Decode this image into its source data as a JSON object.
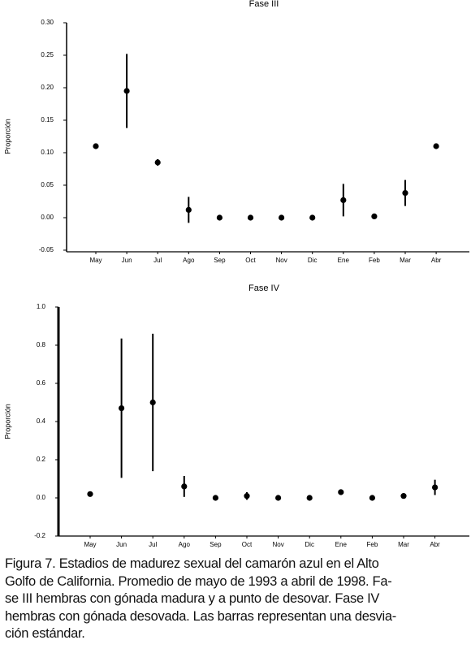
{
  "chart_data": [
    {
      "type": "errorbar",
      "title": "Fase III",
      "ylabel": "Proporción",
      "categories": [
        "May",
        "Jun",
        "Jul",
        "Ago",
        "Sep",
        "Oct",
        "Nov",
        "Dic",
        "Ene",
        "Feb",
        "Mar",
        "Abr"
      ],
      "values": [
        0.11,
        0.195,
        0.085,
        0.012,
        0,
        0,
        0,
        0,
        0.027,
        0.002,
        0.038,
        0.11
      ],
      "errors": [
        0.003,
        0.057,
        0.005,
        0.02,
        0.002,
        0.002,
        0.002,
        0.002,
        0.025,
        0.003,
        0.02,
        0.003
      ],
      "color": "#000000",
      "ylim": [
        -0.05,
        0.3
      ],
      "yticks": [
        -0.05,
        {
          "value": 0,
          "label": "0.00"
        },
        0.05,
        {
          "value": 0.1,
          "label": "0.10"
        },
        0.15,
        {
          "value": 0.2,
          "label": "0.20"
        },
        0.25,
        {
          "value": 0.3,
          "label": "0.30"
        }
      ]
    },
    {
      "type": "errorbar",
      "title": "Fase IV",
      "ylabel": "Proporción",
      "categories": [
        "May",
        "Jun",
        "Jul",
        "Ago",
        "Sep",
        "Oct",
        "Nov",
        "Dic",
        "Ene",
        "Feb",
        "Mar",
        "Abr"
      ],
      "values": [
        0.02,
        0.47,
        0.5,
        0.06,
        0,
        0.01,
        0,
        0,
        0.03,
        0,
        0.01,
        0.055
      ],
      "errors": [
        0.005,
        0.365,
        0.36,
        0.055,
        0.005,
        0.02,
        0.005,
        0.005,
        0.015,
        0.005,
        0.005,
        0.04
      ],
      "color": "#000000",
      "ylim": [
        -0.2,
        1
      ],
      "yticks": [
        -0.2,
        {
          "value": 0,
          "label": "0.0"
        },
        0.2,
        0.4,
        0.6,
        0.8,
        {
          "value": 1,
          "label": "1.0"
        }
      ]
    }
  ],
  "caption": {
    "lines": [
      "Figura 7. Estadios de madurez sexual del camarón azul en el Alto",
      "Golfo de California. Promedio de mayo de 1993 a abril de 1998. Fa-",
      "se III hembras con gónada madura y a punto de desovar. Fase IV",
      "hembras con gónada desovada. Las barras representan una desvia-",
      "ción estándar."
    ]
  }
}
